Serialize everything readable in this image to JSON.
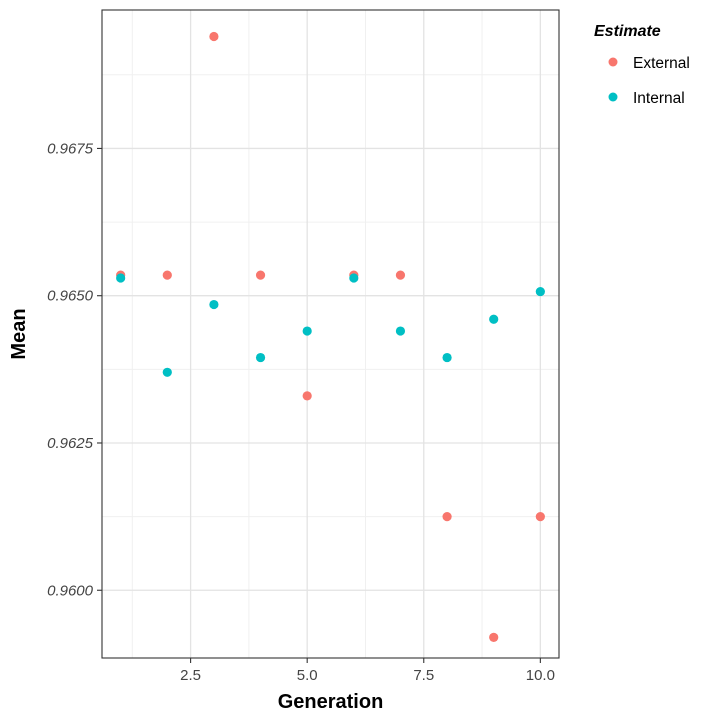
{
  "chart_data": {
    "type": "scatter",
    "title": "",
    "xlabel": "Generation",
    "ylabel": "Mean",
    "xlim": [
      0.6,
      10.4
    ],
    "ylim": [
      0.95885,
      0.96985
    ],
    "x_ticks": [
      2.5,
      5.0,
      7.5,
      10.0
    ],
    "x_tick_labels": [
      "2.5",
      "5.0",
      "7.5",
      "10.0"
    ],
    "y_ticks": [
      0.96,
      0.9625,
      0.965,
      0.9675
    ],
    "y_tick_labels": [
      "0.9600",
      "0.9625",
      "0.9650",
      "0.9675"
    ],
    "grid": true,
    "legend": {
      "title": "Estimate",
      "position": "top-right outside"
    },
    "series": [
      {
        "name": "External",
        "color": "#F8766D",
        "x": [
          1,
          2,
          3,
          4,
          5,
          6,
          7,
          8,
          9,
          10
        ],
        "y": [
          0.96535,
          0.96535,
          0.9694,
          0.96535,
          0.9633,
          0.96535,
          0.96535,
          0.96125,
          0.9592,
          0.96125
        ]
      },
      {
        "name": "Internal",
        "color": "#00BFC4",
        "x": [
          1,
          2,
          3,
          4,
          5,
          6,
          7,
          8,
          9,
          10
        ],
        "y": [
          0.9653,
          0.9637,
          0.96485,
          0.96395,
          0.9644,
          0.9653,
          0.9644,
          0.96395,
          0.9646,
          0.96507
        ]
      }
    ]
  }
}
